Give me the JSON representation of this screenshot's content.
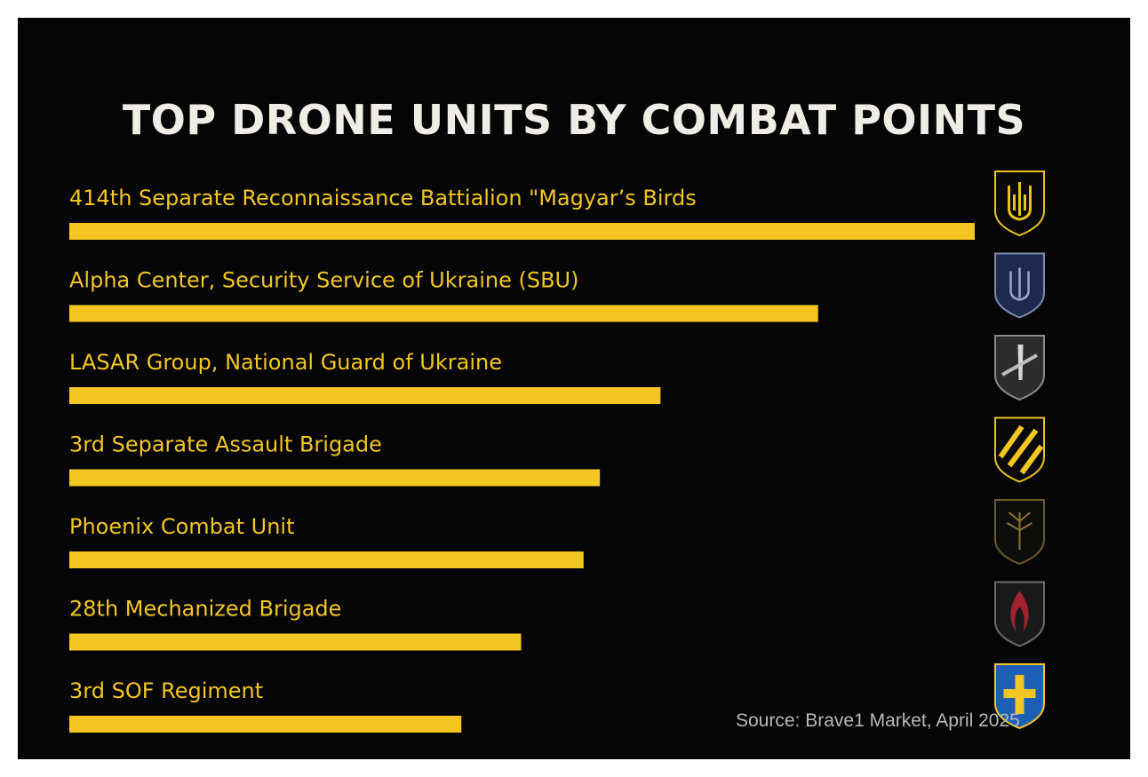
{
  "chart_data": {
    "type": "bar",
    "orientation": "horizontal",
    "title": "TOP DRONE UNITS BY COMBAT POINTS",
    "categories": [
      "414th Separate Reconnaissance Battialion \"Magyar’s Birds",
      "Alpha Center, Security Service of Ukraine (SBU)",
      "LASAR Group, National Guard of Ukraine",
      "3rd Separate Assault Brigade",
      "Phoenix Combat Unit",
      "28th Mechanized Brigade",
      "3rd SOF Regiment"
    ],
    "values": [
      100,
      82.7,
      65.3,
      58.6,
      56.8,
      49.9,
      43.3
    ],
    "value_unit": "relative combat points (index, top unit = 100; no axis printed)",
    "xlim": [
      0,
      100
    ],
    "bar_color": "#f3c623",
    "background": "#050505",
    "grid": false,
    "legend": "none"
  },
  "emblems": [
    "trident-gold-emblem",
    "trident-navy-emblem",
    "sword-grey-emblem",
    "stripes-yellow-emblem",
    "tree-dark-emblem",
    "flame-red-emblem",
    "cross-blue-emblem"
  ],
  "source": "Source: Brave1 Market, April 2025"
}
